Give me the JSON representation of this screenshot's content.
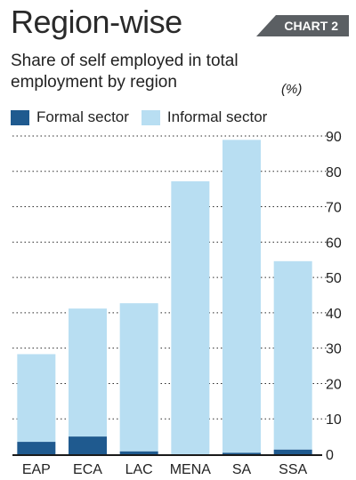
{
  "header": {
    "title": "Region-wise",
    "badge": "CHART 2",
    "subtitle": "Share of self employed in total employment by region",
    "unit": "(%)"
  },
  "colors": {
    "formal": "#1f5a8f",
    "informal": "#b8def2",
    "grid": "#2a2a2a",
    "axis": "#1a1a1a"
  },
  "chart_data": {
    "type": "bar",
    "stacked": true,
    "categories": [
      "EAP",
      "ECA",
      "LAC",
      "MENA",
      "SA",
      "SSA"
    ],
    "series": [
      {
        "name": "Formal sector",
        "values": [
          3.5,
          5.0,
          0.8,
          0,
          0.4,
          1.3
        ]
      },
      {
        "name": "Informal sector",
        "values": [
          24.8,
          36.2,
          41.9,
          77.2,
          88.5,
          53.3
        ]
      }
    ],
    "ylim": [
      0,
      90
    ],
    "yticks": [
      0,
      10,
      20,
      30,
      40,
      50,
      60,
      70,
      80,
      90
    ],
    "ytick_labels": [
      "0",
      "10",
      "20",
      "30",
      "40",
      "50",
      "60",
      "70",
      "80",
      "90"
    ],
    "grid": true,
    "gridstyle": "dotted",
    "y_axis_side": "right",
    "legend_position": "top-left"
  }
}
